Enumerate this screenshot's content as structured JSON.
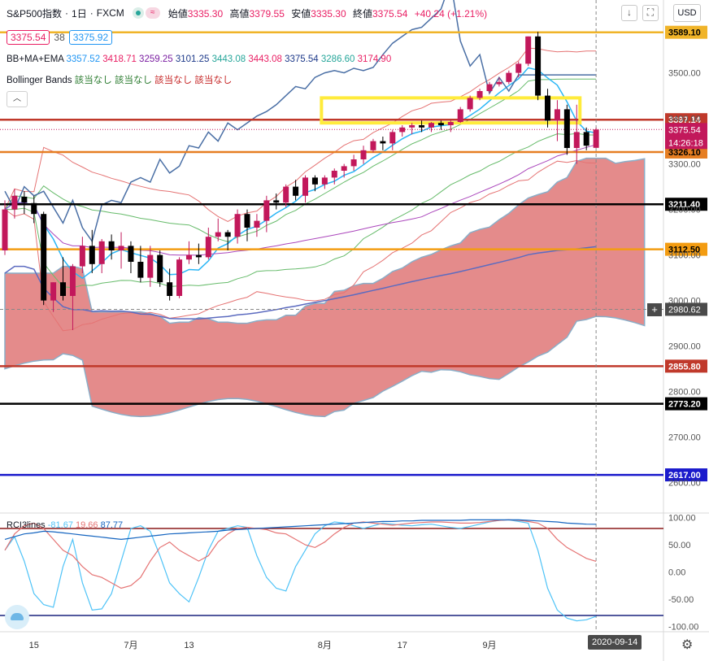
{
  "header": {
    "symbol": "S&P500指数",
    "interval": "1日",
    "source": "FXCM",
    "ohlc": [
      {
        "label": "始値",
        "value": "3335.30"
      },
      {
        "label": "高値",
        "value": "3379.55"
      },
      {
        "label": "安値",
        "value": "3335.30"
      },
      {
        "label": "終値",
        "value": "3375.54"
      }
    ],
    "change": "+40.24 (+1.21%)",
    "currency": "USD"
  },
  "quote": {
    "bid": "3375.54",
    "spread": "38",
    "ask": "3375.92"
  },
  "indicators": {
    "bb_ma_ema": {
      "label": "BB+MA+EMA",
      "values": [
        {
          "v": "3357.52",
          "color": "#2196f3"
        },
        {
          "v": "3418.71",
          "color": "#e91e63"
        },
        {
          "v": "3259.25",
          "color": "#7b1fa2"
        },
        {
          "v": "3101.25",
          "color": "#1e3a8a"
        },
        {
          "v": "3443.08",
          "color": "#26a69a"
        },
        {
          "v": "3443.08",
          "color": "#e91e63"
        },
        {
          "v": "3375.54",
          "color": "#1e3a8a"
        },
        {
          "v": "3286.60",
          "color": "#26a69a"
        },
        {
          "v": "3174.90",
          "color": "#e91e63"
        }
      ]
    },
    "bollinger": {
      "label": "Bollinger Bands",
      "values": [
        {
          "v": "該当なし",
          "color": "#2e7d32"
        },
        {
          "v": "該当なし",
          "color": "#2e7d32"
        },
        {
          "v": "該当なし",
          "color": "#c62828"
        },
        {
          "v": "該当なし",
          "color": "#c62828"
        }
      ]
    },
    "rci": {
      "label": "RCI3lines",
      "values": [
        {
          "v": "-81.67",
          "color": "#4fc3f7"
        },
        {
          "v": "19.66",
          "color": "#e57373"
        },
        {
          "v": "87.77",
          "color": "#1565c0"
        }
      ]
    }
  },
  "colors": {
    "bull": "#c2185b",
    "bear": "#000000",
    "cloud": "#d95a5a",
    "highlight": "#ffeb3b"
  },
  "chart_data": {
    "type": "candlestick",
    "price_axis": {
      "ticks": [
        2600,
        2700,
        2800,
        2900,
        3000,
        3100,
        3200,
        3300,
        3400,
        3500
      ],
      "tick_labels": [
        "2600.00",
        "2700.00",
        "2800.00",
        "2900.00",
        "3000.00",
        "3100.00",
        "3200.00",
        "3300.00",
        "3400.00",
        "3500.00"
      ],
      "range": [
        2535,
        3660
      ]
    },
    "date_axis": {
      "labels": [
        {
          "label": "15",
          "index": 3
        },
        {
          "label": "7月",
          "index": 13
        },
        {
          "label": "13",
          "index": 19
        },
        {
          "label": "8月",
          "index": 33
        },
        {
          "label": "17",
          "index": 41
        },
        {
          "label": "9月",
          "index": 50
        }
      ],
      "current_date": "2020-09-14"
    },
    "price_levels": [
      {
        "value": 3589.1,
        "label": "3589.10",
        "color": "#f0b429"
      },
      {
        "value": 3397.14,
        "label": "3397.14",
        "color": "#c0392b"
      },
      {
        "value": 3326.1,
        "label": "3326.10",
        "color": "#e67e22"
      },
      {
        "value": 3211.4,
        "label": "3211.40",
        "color": "#000000"
      },
      {
        "value": 3112.5,
        "label": "3112.50",
        "color": "#f39c12"
      },
      {
        "value": 2855.8,
        "label": "2855.80",
        "color": "#c0392b"
      },
      {
        "value": 2773.2,
        "label": "2773.20",
        "color": "#000000"
      },
      {
        "value": 2617.0,
        "label": "2617.00",
        "color": "#1a1acc"
      }
    ],
    "current_price": {
      "value": 3375.54,
      "label": "3375.54",
      "countdown": "14:26:18"
    },
    "crosshair": {
      "value": 2980.62,
      "label": "2980.62"
    },
    "highlight_zone": {
      "from_index": 33,
      "to_index": 59,
      "low": 3390,
      "high": 3445
    },
    "candles": [
      {
        "o": 3110,
        "h": 3220,
        "l": 3100,
        "c": 3200
      },
      {
        "o": 3200,
        "h": 3245,
        "l": 3180,
        "c": 3230
      },
      {
        "o": 3228,
        "h": 3240,
        "l": 3190,
        "c": 3215
      },
      {
        "o": 3214,
        "h": 3230,
        "l": 3170,
        "c": 3190
      },
      {
        "o": 3190,
        "h": 3195,
        "l": 2990,
        "c": 3000
      },
      {
        "o": 3000,
        "h": 3040,
        "l": 2975,
        "c": 3040
      },
      {
        "o": 3040,
        "h": 3095,
        "l": 3000,
        "c": 3010
      },
      {
        "o": 3010,
        "h": 3080,
        "l": 2935,
        "c": 3075
      },
      {
        "o": 3075,
        "h": 3140,
        "l": 3060,
        "c": 3120
      },
      {
        "o": 3120,
        "h": 3155,
        "l": 3060,
        "c": 3080
      },
      {
        "o": 3080,
        "h": 3135,
        "l": 3060,
        "c": 3130
      },
      {
        "o": 3130,
        "h": 3145,
        "l": 3090,
        "c": 3110
      },
      {
        "o": 3110,
        "h": 3150,
        "l": 3070,
        "c": 3120
      },
      {
        "o": 3120,
        "h": 3130,
        "l": 3060,
        "c": 3085
      },
      {
        "o": 3085,
        "h": 3120,
        "l": 3040,
        "c": 3050
      },
      {
        "o": 3050,
        "h": 3120,
        "l": 3030,
        "c": 3100
      },
      {
        "o": 3100,
        "h": 3110,
        "l": 3030,
        "c": 3040
      },
      {
        "o": 3040,
        "h": 3070,
        "l": 3000,
        "c": 3010
      },
      {
        "o": 3010,
        "h": 3095,
        "l": 3005,
        "c": 3090
      },
      {
        "o": 3090,
        "h": 3130,
        "l": 3080,
        "c": 3100
      },
      {
        "o": 3100,
        "h": 3125,
        "l": 3080,
        "c": 3095
      },
      {
        "o": 3095,
        "h": 3160,
        "l": 3090,
        "c": 3140
      },
      {
        "o": 3140,
        "h": 3180,
        "l": 3130,
        "c": 3150
      },
      {
        "o": 3150,
        "h": 3155,
        "l": 3110,
        "c": 3140
      },
      {
        "o": 3140,
        "h": 3200,
        "l": 3125,
        "c": 3190
      },
      {
        "o": 3190,
        "h": 3200,
        "l": 3130,
        "c": 3160
      },
      {
        "o": 3160,
        "h": 3190,
        "l": 3140,
        "c": 3175
      },
      {
        "o": 3175,
        "h": 3230,
        "l": 3150,
        "c": 3220
      },
      {
        "o": 3220,
        "h": 3235,
        "l": 3200,
        "c": 3215
      },
      {
        "o": 3215,
        "h": 3255,
        "l": 3205,
        "c": 3250
      },
      {
        "o": 3250,
        "h": 3265,
        "l": 3220,
        "c": 3230
      },
      {
        "o": 3230,
        "h": 3275,
        "l": 3215,
        "c": 3270
      },
      {
        "o": 3270,
        "h": 3275,
        "l": 3240,
        "c": 3255
      },
      {
        "o": 3255,
        "h": 3275,
        "l": 3245,
        "c": 3270
      },
      {
        "o": 3270,
        "h": 3290,
        "l": 3255,
        "c": 3285
      },
      {
        "o": 3285,
        "h": 3300,
        "l": 3270,
        "c": 3295
      },
      {
        "o": 3295,
        "h": 3320,
        "l": 3285,
        "c": 3310
      },
      {
        "o": 3310,
        "h": 3340,
        "l": 3300,
        "c": 3330
      },
      {
        "o": 3330,
        "h": 3355,
        "l": 3325,
        "c": 3350
      },
      {
        "o": 3350,
        "h": 3360,
        "l": 3330,
        "c": 3345
      },
      {
        "o": 3345,
        "h": 3375,
        "l": 3330,
        "c": 3370
      },
      {
        "o": 3370,
        "h": 3385,
        "l": 3360,
        "c": 3380
      },
      {
        "o": 3380,
        "h": 3390,
        "l": 3365,
        "c": 3385
      },
      {
        "o": 3385,
        "h": 3395,
        "l": 3370,
        "c": 3380
      },
      {
        "o": 3380,
        "h": 3392,
        "l": 3370,
        "c": 3390
      },
      {
        "o": 3390,
        "h": 3395,
        "l": 3375,
        "c": 3385
      },
      {
        "o": 3385,
        "h": 3395,
        "l": 3370,
        "c": 3392
      },
      {
        "o": 3392,
        "h": 3425,
        "l": 3390,
        "c": 3420
      },
      {
        "o": 3420,
        "h": 3450,
        "l": 3415,
        "c": 3445
      },
      {
        "o": 3445,
        "h": 3465,
        "l": 3440,
        "c": 3460
      },
      {
        "o": 3460,
        "h": 3480,
        "l": 3455,
        "c": 3475
      },
      {
        "o": 3475,
        "h": 3490,
        "l": 3470,
        "c": 3480
      },
      {
        "o": 3480,
        "h": 3505,
        "l": 3475,
        "c": 3500
      },
      {
        "o": 3500,
        "h": 3525,
        "l": 3490,
        "c": 3520
      },
      {
        "o": 3520,
        "h": 3580,
        "l": 3515,
        "c": 3580
      },
      {
        "o": 3580,
        "h": 3590,
        "l": 3440,
        "c": 3450
      },
      {
        "o": 3450,
        "h": 3465,
        "l": 3380,
        "c": 3395
      },
      {
        "o": 3395,
        "h": 3440,
        "l": 3350,
        "c": 3420
      },
      {
        "o": 3420,
        "h": 3430,
        "l": 3320,
        "c": 3335
      },
      {
        "o": 3335,
        "h": 3430,
        "l": 3300,
        "c": 3370
      },
      {
        "o": 3370,
        "h": 3380,
        "l": 3330,
        "c": 3340
      },
      {
        "o": 3335.3,
        "h": 3379.55,
        "l": 3335.3,
        "c": 3375.54
      }
    ],
    "rci": {
      "ticks": [
        100,
        50,
        0,
        -50,
        -100
      ],
      "tick_labels": [
        "100.00",
        "50.00",
        "0.00",
        "-50.00",
        "-100.00"
      ],
      "range": [
        -107,
        107
      ],
      "levels": [
        80,
        -80
      ],
      "series": [
        {
          "color": "#4fc3f7",
          "values": [
            40,
            65,
            20,
            -40,
            -60,
            -65,
            10,
            60,
            -20,
            -70,
            -68,
            -40,
            20,
            80,
            85,
            75,
            30,
            -20,
            -40,
            -55,
            -10,
            40,
            75,
            80,
            85,
            82,
            30,
            -10,
            -30,
            -35,
            10,
            40,
            70,
            85,
            92,
            90,
            85,
            80,
            85,
            90,
            88,
            86,
            85,
            87,
            88,
            85,
            82,
            80,
            84,
            88,
            92,
            95,
            96,
            93,
            90,
            40,
            -30,
            -70,
            -85,
            -90,
            -88,
            -81.67
          ]
        },
        {
          "color": "#e57373",
          "values": [
            40,
            70,
            85,
            90,
            80,
            60,
            40,
            30,
            10,
            -5,
            -10,
            -20,
            -30,
            -25,
            -10,
            20,
            45,
            55,
            40,
            30,
            20,
            30,
            55,
            70,
            80,
            82,
            80,
            78,
            72,
            70,
            60,
            50,
            45,
            55,
            70,
            82,
            90,
            92,
            90,
            88,
            86,
            88,
            90,
            91,
            92,
            92,
            91,
            90,
            90,
            91,
            93,
            95,
            96,
            95,
            93,
            90,
            80,
            60,
            45,
            35,
            25,
            19.66
          ]
        },
        {
          "color": "#1565c0",
          "values": [
            60,
            65,
            70,
            72,
            75,
            74,
            72,
            70,
            68,
            66,
            64,
            62,
            60,
            62,
            64,
            66,
            68,
            70,
            71,
            72,
            73,
            74,
            75,
            77,
            78,
            79,
            80,
            81,
            82,
            83,
            84,
            85,
            86,
            87,
            88,
            89,
            90,
            91,
            92,
            93,
            93,
            94,
            94,
            95,
            95,
            95,
            95,
            95,
            96,
            96,
            96,
            96,
            96,
            96,
            95,
            94,
            93,
            92,
            90,
            89,
            88,
            87.77
          ]
        }
      ]
    }
  }
}
